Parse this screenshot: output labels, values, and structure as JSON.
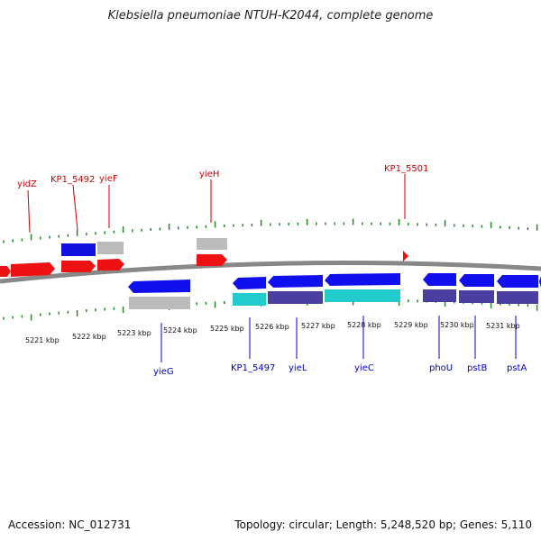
{
  "title": "Klebsiella pneumoniae NTUH-K2044, complete genome",
  "footer": {
    "accession": "Accession: NC_012731",
    "summary": "Topology: circular; Length: 5,248,520 bp; Genes: 5,110"
  },
  "colors": {
    "forward_gene": "#ee1111",
    "forward_cds": "#1111dd",
    "reverse_gene": "#1010ee",
    "reverse_cds_cyan": "#22cccc",
    "reverse_cds_purple": "#4a3fa0",
    "pseudo_grey": "#bbbbbb",
    "tick_green": "#228822",
    "backbone": "#888888"
  },
  "kbp_labels": [
    "5221 kbp",
    "5222 kbp",
    "5223 kbp",
    "5224 kbp",
    "5225 kbp",
    "5226 kbp",
    "5227 kbp",
    "5228 kbp",
    "5229 kbp",
    "5230 kbp",
    "5231 kbp"
  ],
  "top_genes": [
    "yidZ",
    "KP1_5492",
    "yieF",
    "yieH",
    "KP1_5501"
  ],
  "bottom_genes": [
    "yieG",
    "KP1_5497",
    "yieL",
    "yieC",
    "phoU",
    "pstB",
    "pstA"
  ]
}
